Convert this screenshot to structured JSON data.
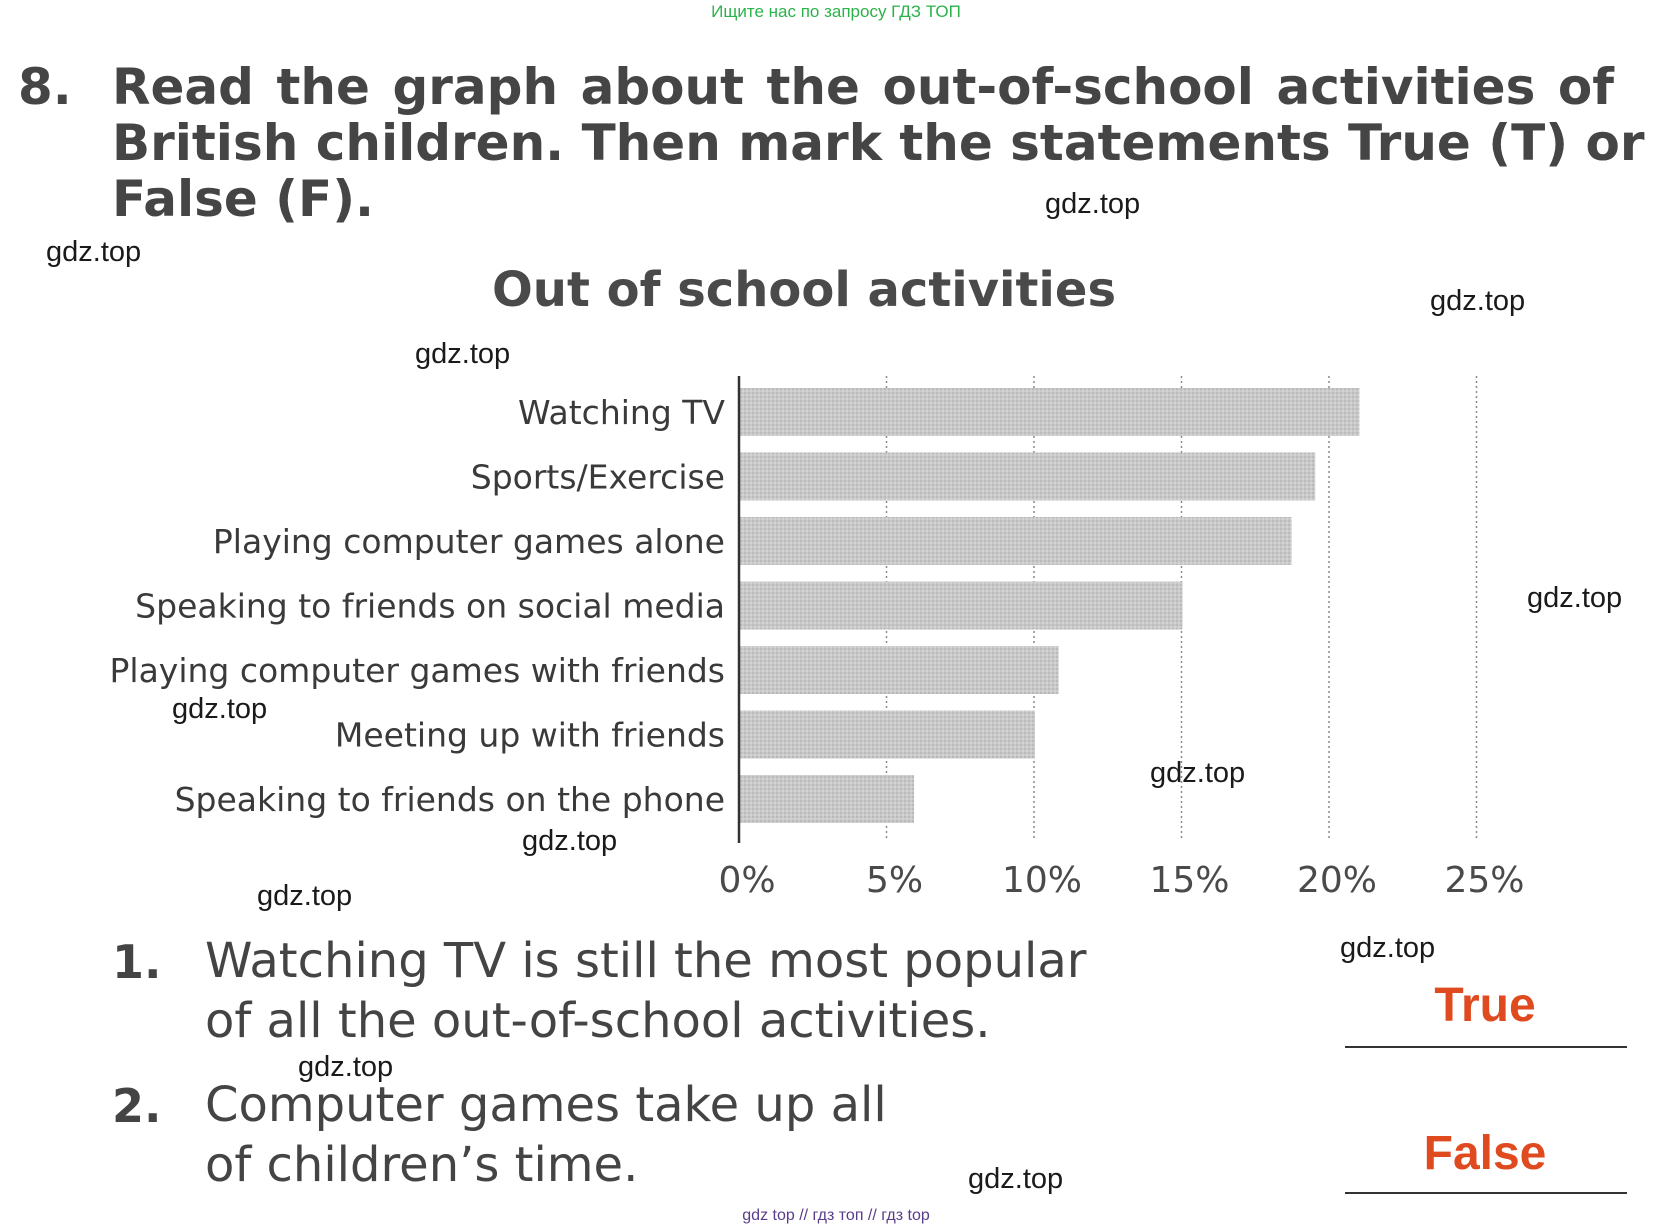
{
  "header_link": "Ищите нас по запросу ГДЗ ТОП",
  "exercise": {
    "number": "8.",
    "lines": [
      "Read the graph about the out-of-school activities of",
      "British children. Then mark the statements True (T) or",
      "False (F)."
    ]
  },
  "chart_data": {
    "type": "bar",
    "orientation": "horizontal",
    "title": "Out of school activities",
    "categories": [
      "Watching TV",
      "Sports/Exercise",
      "Playing computer games alone",
      "Speaking to friends on social media",
      "Playing computer games with friends",
      "Meeting up with friends",
      "Speaking to friends on the phone"
    ],
    "values": [
      21,
      19.5,
      18.7,
      15,
      10.8,
      10,
      5.9
    ],
    "xlim": [
      0,
      25
    ],
    "x_ticks": [
      "0%",
      "5%",
      "10%",
      "15%",
      "20%",
      "25%"
    ],
    "x_tick_values": [
      0,
      5,
      10,
      15,
      20,
      25
    ],
    "xlabel": "",
    "ylabel": "",
    "grid": "vertical dotted",
    "bar_color": "#c9c9c9"
  },
  "statements": [
    {
      "number": "1.",
      "lines": [
        "Watching TV is still the most popular",
        "of all the out-of-school activities."
      ],
      "answer": "True"
    },
    {
      "number": "2.",
      "lines": [
        "Computer games take up all",
        "of children’s time."
      ],
      "answer": "False"
    }
  ],
  "watermark": "gdz.top",
  "footer": "gdz top  //  гдз топ  //  гдз top"
}
